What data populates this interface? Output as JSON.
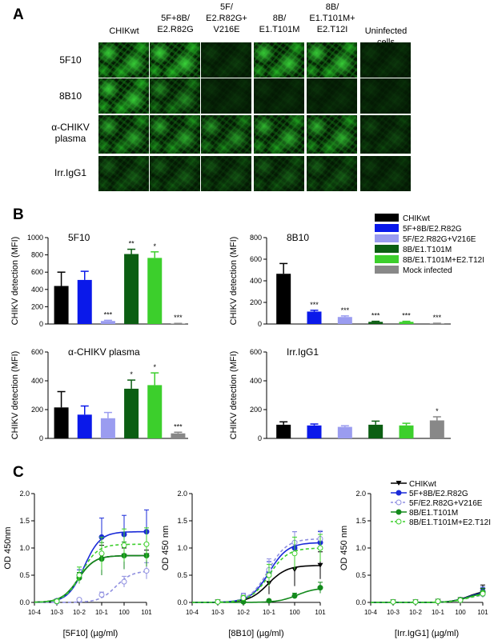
{
  "panels": {
    "A": "A",
    "B": "B",
    "C": "C"
  },
  "image_grid": {
    "columns": [
      "CHIKwt",
      "5F+8B/\nE2.R82G",
      "5F/\nE2.R82G+\nV216E",
      "8B/\nE1.T101M",
      "8B/\nE1.T101M+\nE2.T12I",
      "Uninfected\ncells"
    ],
    "rows": [
      "5F10",
      "8B10",
      "α-CHIKV\nplasma",
      "Irr.IgG1"
    ],
    "intensity": [
      [
        0.9,
        0.95,
        0.15,
        0.9,
        0.9,
        0.12
      ],
      [
        0.9,
        0.55,
        0.1,
        0.1,
        0.1,
        0.1
      ],
      [
        0.7,
        0.7,
        0.6,
        0.75,
        0.75,
        0.2
      ],
      [
        0.3,
        0.3,
        0.25,
        0.3,
        0.3,
        0.15
      ]
    ],
    "colors": {
      "fluor": "#2bd42b",
      "dark": "#041a04"
    }
  },
  "chart_data": [
    {
      "type": "bar",
      "panel": "B",
      "title": "5F10",
      "ylabel": "CHIKV detection (MFI)",
      "ylim": [
        0,
        1000
      ],
      "yticks": [
        "0",
        "200",
        "400",
        "600",
        "800",
        "1000"
      ],
      "categories": [
        "CHIKwt",
        "5F+8B/E2.R82G",
        "5F/E2.R82G+V216E",
        "8B/E1.T101M",
        "8B/E1.T101M+E2.T12I",
        "Mock infected"
      ],
      "values": [
        440,
        510,
        35,
        810,
        765,
        5
      ],
      "errors": [
        160,
        100,
        8,
        55,
        70,
        2
      ],
      "significance": [
        "",
        "",
        "***",
        "**",
        "*",
        "***"
      ]
    },
    {
      "type": "bar",
      "panel": "B",
      "title": "8B10",
      "ylabel": "CHIKV detection (MFI)",
      "ylim": [
        0,
        800
      ],
      "yticks": [
        "0",
        "200",
        "400",
        "600",
        "800"
      ],
      "categories": [
        "CHIKwt",
        "5F+8B/E2.R82G",
        "5F/E2.R82G+V216E",
        "8B/E1.T101M",
        "8B/E1.T101M+E2.T12I",
        "Mock infected"
      ],
      "values": [
        465,
        115,
        65,
        20,
        20,
        5
      ],
      "errors": [
        95,
        12,
        10,
        5,
        5,
        2
      ],
      "significance": [
        "",
        "***",
        "***",
        "***",
        "***",
        "***"
      ]
    },
    {
      "type": "bar",
      "panel": "B",
      "title": "α-CHIKV plasma",
      "ylabel": "CHIKV detection (MFI)",
      "ylim": [
        0,
        600
      ],
      "yticks": [
        "0",
        "200",
        "400",
        "600"
      ],
      "categories": [
        "CHIKwt",
        "5F+8B/E2.R82G",
        "5F/E2.R82G+V216E",
        "8B/E1.T101M",
        "8B/E1.T101M+E2.T12I",
        "Mock infected"
      ],
      "values": [
        215,
        165,
        140,
        345,
        370,
        35
      ],
      "errors": [
        110,
        60,
        40,
        60,
        85,
        8
      ],
      "significance": [
        "",
        "",
        "",
        "*",
        "*",
        "***"
      ]
    },
    {
      "type": "bar",
      "panel": "B",
      "title": "Irr.IgG1",
      "ylabel": "CHIKV detection (MFI)",
      "ylim": [
        0,
        600
      ],
      "yticks": [
        "0",
        "200",
        "400",
        "600"
      ],
      "categories": [
        "CHIKwt",
        "5F+8B/E2.R82G",
        "5F/E2.R82G+V216E",
        "8B/E1.T101M",
        "8B/E1.T101M+E2.T12I",
        "Mock infected"
      ],
      "values": [
        95,
        90,
        80,
        95,
        90,
        125
      ],
      "errors": [
        20,
        10,
        8,
        25,
        15,
        25
      ],
      "significance": [
        "",
        "",
        "",
        "",
        "",
        "*"
      ]
    },
    {
      "type": "line",
      "panel": "C",
      "xlabel": "[5F10] (µg/ml)",
      "ylabel": "OD 450nm",
      "xscale": "log",
      "xlim": [
        0.0001,
        10
      ],
      "ylim": [
        0,
        2.0
      ],
      "xticks": [
        "10-4",
        "10-3",
        "10-2",
        "10-1",
        "100",
        "101"
      ],
      "yticks": [
        "0.0",
        "0.5",
        "1.0",
        "1.5",
        "2.0"
      ],
      "x": [
        0.001,
        0.01,
        0.1,
        1,
        10
      ],
      "series": [
        {
          "name": "CHIKwt",
          "values": [
            0.02,
            0.45,
            0.85,
            0.85,
            0.86
          ],
          "errors": [
            0.01,
            0.1,
            0.2,
            0.15,
            0.1
          ]
        },
        {
          "name": "5F+8B/E2.R82G",
          "values": [
            0.03,
            0.5,
            1.2,
            1.25,
            1.3
          ],
          "errors": [
            0.01,
            0.1,
            0.35,
            0.35,
            0.4
          ]
        },
        {
          "name": "5F/E2.R82G+V216E",
          "values": [
            0.01,
            0.05,
            0.14,
            0.38,
            0.58
          ],
          "errors": [
            0.01,
            0.02,
            0.05,
            0.1,
            0.15
          ]
        },
        {
          "name": "8B/E1.T101M",
          "values": [
            0.02,
            0.45,
            0.8,
            0.86,
            0.86
          ],
          "errors": [
            0.01,
            0.1,
            0.3,
            0.25,
            0.2
          ]
        },
        {
          "name": "8B/E1.T101M+E2.T12I",
          "values": [
            0.02,
            0.5,
            0.9,
            1.05,
            1.07
          ],
          "errors": [
            0.01,
            0.15,
            0.3,
            0.3,
            0.3
          ]
        }
      ]
    },
    {
      "type": "line",
      "panel": "C",
      "xlabel": "[8B10] (µg/ml)",
      "ylabel": "OD 450 nm",
      "xscale": "log",
      "xlim": [
        0.0001,
        10
      ],
      "ylim": [
        0,
        2.0
      ],
      "xticks": [
        "10-4",
        "10-3",
        "10-2",
        "10-1",
        "100",
        "101"
      ],
      "yticks": [
        "0.0",
        "0.5",
        "1.0",
        "1.5",
        "2.0"
      ],
      "x": [
        0.001,
        0.01,
        0.1,
        1,
        10
      ],
      "series": [
        {
          "name": "CHIKwt",
          "values": [
            0.01,
            0.05,
            0.35,
            0.6,
            0.68
          ],
          "errors": [
            0.01,
            0.03,
            0.2,
            0.3,
            0.25
          ]
        },
        {
          "name": "5F+8B/E2.R82G",
          "values": [
            0.01,
            0.1,
            0.55,
            1.0,
            1.1
          ],
          "errors": [
            0.01,
            0.05,
            0.2,
            0.3,
            0.2
          ]
        },
        {
          "name": "5F/E2.R82G+V216E",
          "values": [
            0.01,
            0.12,
            0.6,
            1.1,
            1.17
          ],
          "errors": [
            0.01,
            0.05,
            0.2,
            0.2,
            0.15
          ]
        },
        {
          "name": "8B/E1.T101M",
          "values": [
            0.01,
            0.01,
            0.03,
            0.12,
            0.27
          ],
          "errors": [
            0.01,
            0.01,
            0.02,
            0.05,
            0.1
          ]
        },
        {
          "name": "8B/E1.T101M+E2.T12I",
          "values": [
            0.01,
            0.08,
            0.5,
            0.9,
            1.0
          ],
          "errors": [
            0.01,
            0.05,
            0.2,
            0.3,
            0.25
          ]
        }
      ]
    },
    {
      "type": "line",
      "panel": "C",
      "xlabel": "[Irr.IgG1] (µg/ml)",
      "ylabel": "OD 450 nm",
      "xscale": "log",
      "xlim": [
        0.0001,
        10
      ],
      "ylim": [
        0,
        2.0
      ],
      "xticks": [
        "10-4",
        "10-3",
        "10-2",
        "10-1",
        "100",
        "101"
      ],
      "yticks": [
        "0.0",
        "0.5",
        "1.0",
        "1.5",
        "2.0"
      ],
      "x": [
        0.001,
        0.01,
        0.1,
        1,
        10
      ],
      "series": [
        {
          "name": "CHIKwt",
          "values": [
            0.01,
            0.01,
            0.02,
            0.05,
            0.22
          ],
          "errors": [
            0.01,
            0.01,
            0.01,
            0.03,
            0.1
          ]
        },
        {
          "name": "5F+8B/E2.R82G",
          "values": [
            0.01,
            0.01,
            0.02,
            0.05,
            0.2
          ],
          "errors": [
            0.01,
            0.01,
            0.01,
            0.03,
            0.08
          ]
        },
        {
          "name": "5F/E2.R82G+V216E",
          "values": [
            0.01,
            0.01,
            0.02,
            0.04,
            0.15
          ],
          "errors": [
            0.01,
            0.01,
            0.01,
            0.02,
            0.06
          ]
        },
        {
          "name": "8B/E1.T101M",
          "values": [
            0.01,
            0.01,
            0.02,
            0.05,
            0.18
          ],
          "errors": [
            0.01,
            0.01,
            0.01,
            0.03,
            0.08
          ]
        },
        {
          "name": "8B/E1.T101M+E2.T12I",
          "values": [
            0.01,
            0.01,
            0.02,
            0.04,
            0.16
          ],
          "errors": [
            0.01,
            0.01,
            0.01,
            0.02,
            0.06
          ]
        }
      ]
    }
  ],
  "legend_b": [
    {
      "label": "CHIKwt",
      "color": "#000000"
    },
    {
      "label": "5F+8B/E2.R82G",
      "color": "#0a19ea"
    },
    {
      "label": "5F/E2.R82G+V216E",
      "color": "#9a9cf0"
    },
    {
      "label": "8B/E1.T101M",
      "color": "#0b5e12"
    },
    {
      "label": "8B/E1.T101M+E2.T12I",
      "color": "#3ccf2c"
    },
    {
      "label": "Mock infected",
      "color": "#888888"
    }
  ],
  "bar_colors": [
    "#000000",
    "#0a19ea",
    "#9a9cf0",
    "#0b5e12",
    "#3ccf2c",
    "#888888"
  ],
  "legend_c": [
    {
      "label": "CHIKwt",
      "color": "#000000",
      "marker": "tri-down",
      "dash": false,
      "filled": true
    },
    {
      "label": "5F+8B/E2.R82G",
      "color": "#1a2ad8",
      "marker": "circle",
      "dash": false,
      "filled": true
    },
    {
      "label": "5F/E2.R82G+V216E",
      "color": "#8f8fe0",
      "marker": "circle",
      "dash": true,
      "filled": false
    },
    {
      "label": "8B/E1.T101M",
      "color": "#138a1c",
      "marker": "circle",
      "dash": false,
      "filled": true
    },
    {
      "label": "8B/E1.T101M+E2.T12I",
      "color": "#3ccf2c",
      "marker": "circle",
      "dash": true,
      "filled": false
    }
  ]
}
